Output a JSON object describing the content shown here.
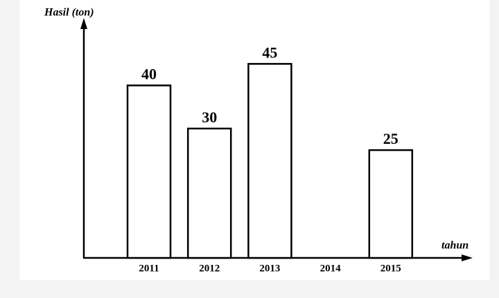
{
  "chart_data": {
    "type": "bar",
    "y_label": "Hasil (ton)",
    "x_label": "tahun",
    "categories": [
      "2011",
      "2012",
      "2013",
      "2014",
      "2015"
    ],
    "values": [
      40,
      30,
      45,
      null,
      25
    ],
    "color": "#ffffff",
    "ylim": [
      0,
      55
    ]
  }
}
